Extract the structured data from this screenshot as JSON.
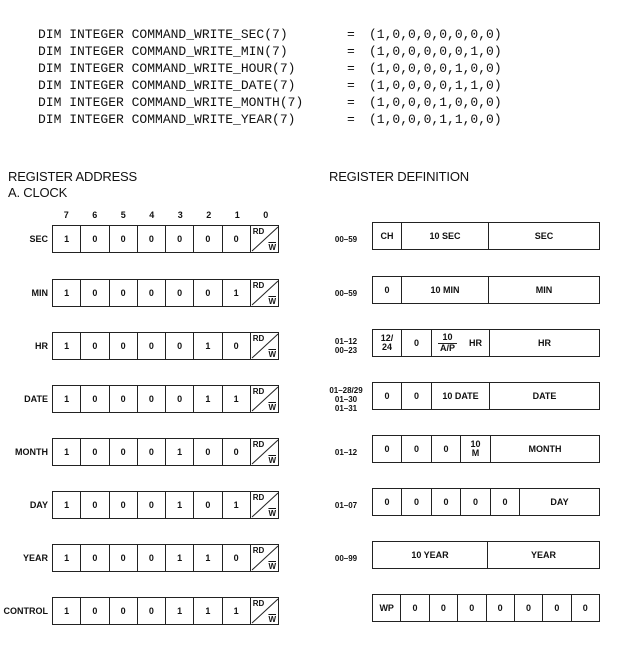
{
  "code": [
    {
      "decl": "DIM INTEGER COMMAND_WRITE_SEC(7)",
      "eq": "=",
      "val": "(1,0,0,0,0,0,0,0)"
    },
    {
      "decl": "DIM INTEGER COMMAND_WRITE_MIN(7)",
      "eq": "=",
      "val": "(1,0,0,0,0,0,1,0)"
    },
    {
      "decl": "DIM INTEGER COMMAND_WRITE_HOUR(7)",
      "eq": "=",
      "val": "(1,0,0,0,0,1,0,0)"
    },
    {
      "decl": "DIM INTEGER COMMAND_WRITE_DATE(7)",
      "eq": "=",
      "val": "(1,0,0,0,0,1,1,0)"
    },
    {
      "decl": "DIM INTEGER COMMAND_WRITE_MONTH(7)",
      "eq": "=",
      "val": "(1,0,0,0,1,0,0,0)"
    },
    {
      "decl": "DIM INTEGER COMMAND_WRITE_YEAR(7)",
      "eq": "=",
      "val": "(1,0,0,0,1,1,0,0)"
    }
  ],
  "headings": {
    "address": "REGISTER ADDRESS",
    "clock": "A. CLOCK",
    "definition": "REGISTER DEFINITION"
  },
  "bit_numbers": [
    "7",
    "6",
    "5",
    "4",
    "3",
    "2",
    "1",
    "0"
  ],
  "rd": "RD",
  "w": "W",
  "registers": [
    {
      "label": "SEC",
      "bits": [
        "1",
        "0",
        "0",
        "0",
        "0",
        "0",
        "0"
      ],
      "range": [
        "00–59"
      ],
      "fields": [
        "CH",
        "10 SEC",
        "SEC"
      ]
    },
    {
      "label": "MIN",
      "bits": [
        "1",
        "0",
        "0",
        "0",
        "0",
        "0",
        "1"
      ],
      "range": [
        "00–59"
      ],
      "fields": [
        "0",
        "10 MIN",
        "MIN"
      ]
    },
    {
      "label": "HR",
      "bits": [
        "1",
        "0",
        "0",
        "0",
        "0",
        "1",
        "0"
      ],
      "range": [
        "01–12",
        "00–23"
      ],
      "fields": [
        "12/",
        "24",
        "0",
        "10",
        "A/P",
        "HR",
        "HR"
      ]
    },
    {
      "label": "DATE",
      "bits": [
        "1",
        "0",
        "0",
        "0",
        "0",
        "1",
        "1"
      ],
      "range": [
        "01–28/29",
        "01–30",
        "01–31"
      ],
      "fields": [
        "0",
        "0",
        "10 DATE",
        "DATE"
      ]
    },
    {
      "label": "MONTH",
      "bits": [
        "1",
        "0",
        "0",
        "0",
        "1",
        "0",
        "0"
      ],
      "range": [
        "01–12"
      ],
      "fields": [
        "0",
        "0",
        "0",
        "10",
        "M",
        "MONTH"
      ]
    },
    {
      "label": "DAY",
      "bits": [
        "1",
        "0",
        "0",
        "0",
        "1",
        "0",
        "1"
      ],
      "range": [
        "01–07"
      ],
      "fields": [
        "0",
        "0",
        "0",
        "0",
        "0",
        "DAY"
      ]
    },
    {
      "label": "YEAR",
      "bits": [
        "1",
        "0",
        "0",
        "0",
        "1",
        "1",
        "0"
      ],
      "range": [
        "00–99"
      ],
      "fields": [
        "10 YEAR",
        "YEAR"
      ]
    },
    {
      "label": "CONTROL",
      "bits": [
        "1",
        "0",
        "0",
        "0",
        "1",
        "1",
        "1"
      ],
      "range": [],
      "fields": [
        "WP",
        "0",
        "0",
        "0",
        "0",
        "0",
        "0",
        "0"
      ]
    }
  ]
}
